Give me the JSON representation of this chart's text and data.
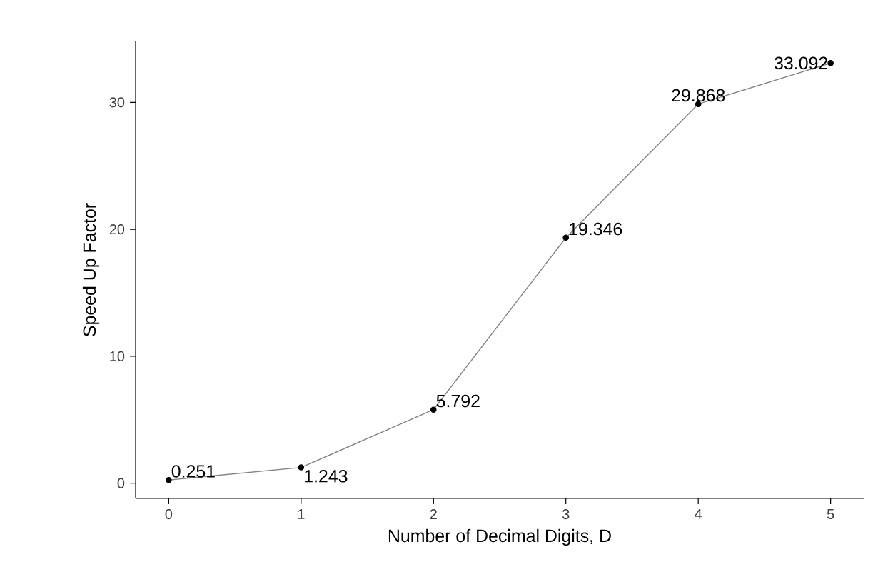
{
  "chart_data": {
    "type": "line",
    "xlabel": "Number of Decimal Digits, D",
    "ylabel": "Speed Up Factor",
    "x": [
      0,
      1,
      2,
      3,
      4,
      5
    ],
    "series": [
      {
        "color": "#808080",
        "values": [
          0.251,
          1.243,
          5.792,
          19.346,
          29.868,
          33.092
        ]
      }
    ],
    "xlim": [
      -0.25,
      5.25
    ],
    "xticks": [
      0,
      1,
      2,
      3,
      4,
      5
    ],
    "ylim": [
      -1.2,
      34.8
    ],
    "yticks": [
      0,
      10,
      20,
      30
    ],
    "marker": "circle",
    "line_style": "solid",
    "data_labels": true,
    "grid": false
  }
}
